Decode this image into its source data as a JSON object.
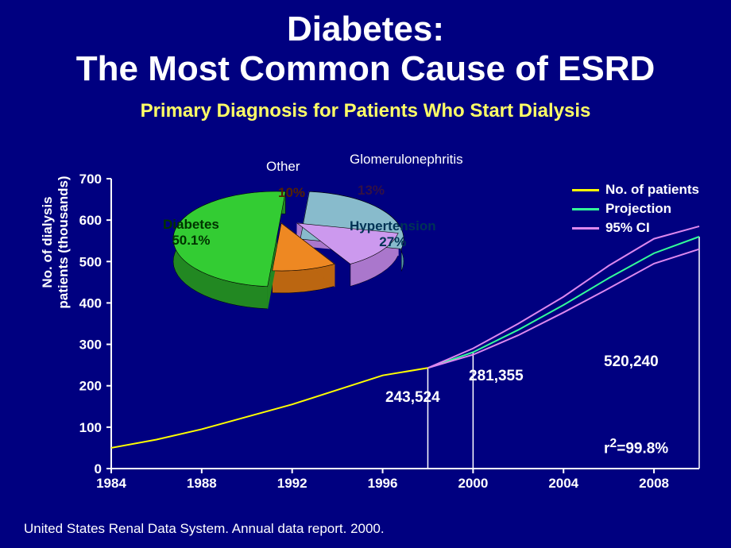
{
  "title": {
    "line1": "Diabetes:",
    "line2": "The Most Common Cause of ESRD",
    "fontsize": 44,
    "color": "#ffffff"
  },
  "subtitle": {
    "text": "Primary Diagnosis for Patients Who Start Dialysis",
    "fontsize": 24,
    "color": "#ffff66"
  },
  "background_color": "#000080",
  "pie_chart": {
    "type": "pie-3d-exploded",
    "slices": [
      {
        "name": "Diabetes",
        "value": 50.1,
        "label": "50.1%",
        "color": "#33cc33",
        "side_color": "#228822"
      },
      {
        "name": "Hypertension",
        "value": 27,
        "label": "27%",
        "color": "#88bbcc",
        "side_color": "#5599aa"
      },
      {
        "name": "Glomerulonephritis",
        "value": 13,
        "label": "13%",
        "color": "#cc99ee",
        "side_color": "#aa77cc"
      },
      {
        "name": "Other",
        "value": 10,
        "label": "10%",
        "color": "#ee8822",
        "side_color": "#bb6611"
      }
    ],
    "label_fontsize": 17,
    "label_text_color": "#ffffff",
    "slice_label_color_dark": "#003300",
    "slice_label_color_blue": "#004466"
  },
  "line_chart": {
    "type": "line",
    "x_axis": {
      "label": "",
      "ticks": [
        "1984",
        "1988",
        "1992",
        "1996",
        "2000",
        "2004",
        "2008"
      ],
      "fontsize": 17
    },
    "y_axis": {
      "label": "No. of dialysis\npatients (thousands)",
      "ticks": [
        0,
        100,
        200,
        300,
        400,
        500,
        600,
        700
      ],
      "ylim": [
        0,
        700
      ],
      "fontsize": 17
    },
    "series": [
      {
        "name": "No. of patients",
        "color": "#ffff00",
        "line_width": 2,
        "points": [
          [
            1984,
            50
          ],
          [
            1986,
            70
          ],
          [
            1988,
            95
          ],
          [
            1990,
            125
          ],
          [
            1992,
            155
          ],
          [
            1994,
            190
          ],
          [
            1996,
            225
          ],
          [
            1998,
            243
          ]
        ]
      },
      {
        "name": "Projection",
        "color": "#33ff99",
        "line_width": 2,
        "points": [
          [
            1998,
            243
          ],
          [
            2000,
            281
          ],
          [
            2002,
            335
          ],
          [
            2004,
            395
          ],
          [
            2006,
            460
          ],
          [
            2008,
            520
          ],
          [
            2010,
            560
          ]
        ]
      },
      {
        "name": "95% CI",
        "color": "#dd88ee",
        "line_width": 2,
        "upper": [
          [
            1998,
            243
          ],
          [
            2000,
            290
          ],
          [
            2002,
            350
          ],
          [
            2004,
            415
          ],
          [
            2006,
            490
          ],
          [
            2008,
            555
          ],
          [
            2010,
            585
          ]
        ],
        "lower": [
          [
            1998,
            243
          ],
          [
            2000,
            275
          ],
          [
            2002,
            322
          ],
          [
            2004,
            377
          ],
          [
            2006,
            435
          ],
          [
            2008,
            495
          ],
          [
            2010,
            530
          ]
        ]
      }
    ],
    "verticals": [
      {
        "x": 1998,
        "y": 243
      },
      {
        "x": 2000,
        "y": 281
      },
      {
        "x": 2010,
        "y": 560
      }
    ],
    "data_labels": [
      {
        "text": "243,524",
        "x_near": 1998
      },
      {
        "text": "281,355",
        "x_near": 2000
      },
      {
        "text": "520,240",
        "x_near": 2009
      }
    ],
    "r_squared": "r²=99.8%",
    "axis_color": "#ffffff"
  },
  "legend": {
    "items": [
      {
        "label": "No. of patients",
        "color": "#ffff00"
      },
      {
        "label": "Projection",
        "color": "#33ff99"
      },
      {
        "label": "95% CI",
        "color": "#dd88ee"
      }
    ],
    "fontsize": 17
  },
  "source": {
    "text": "United States Renal Data System. Annual data report. 2000.",
    "fontsize": 17,
    "color": "#ffffff"
  }
}
